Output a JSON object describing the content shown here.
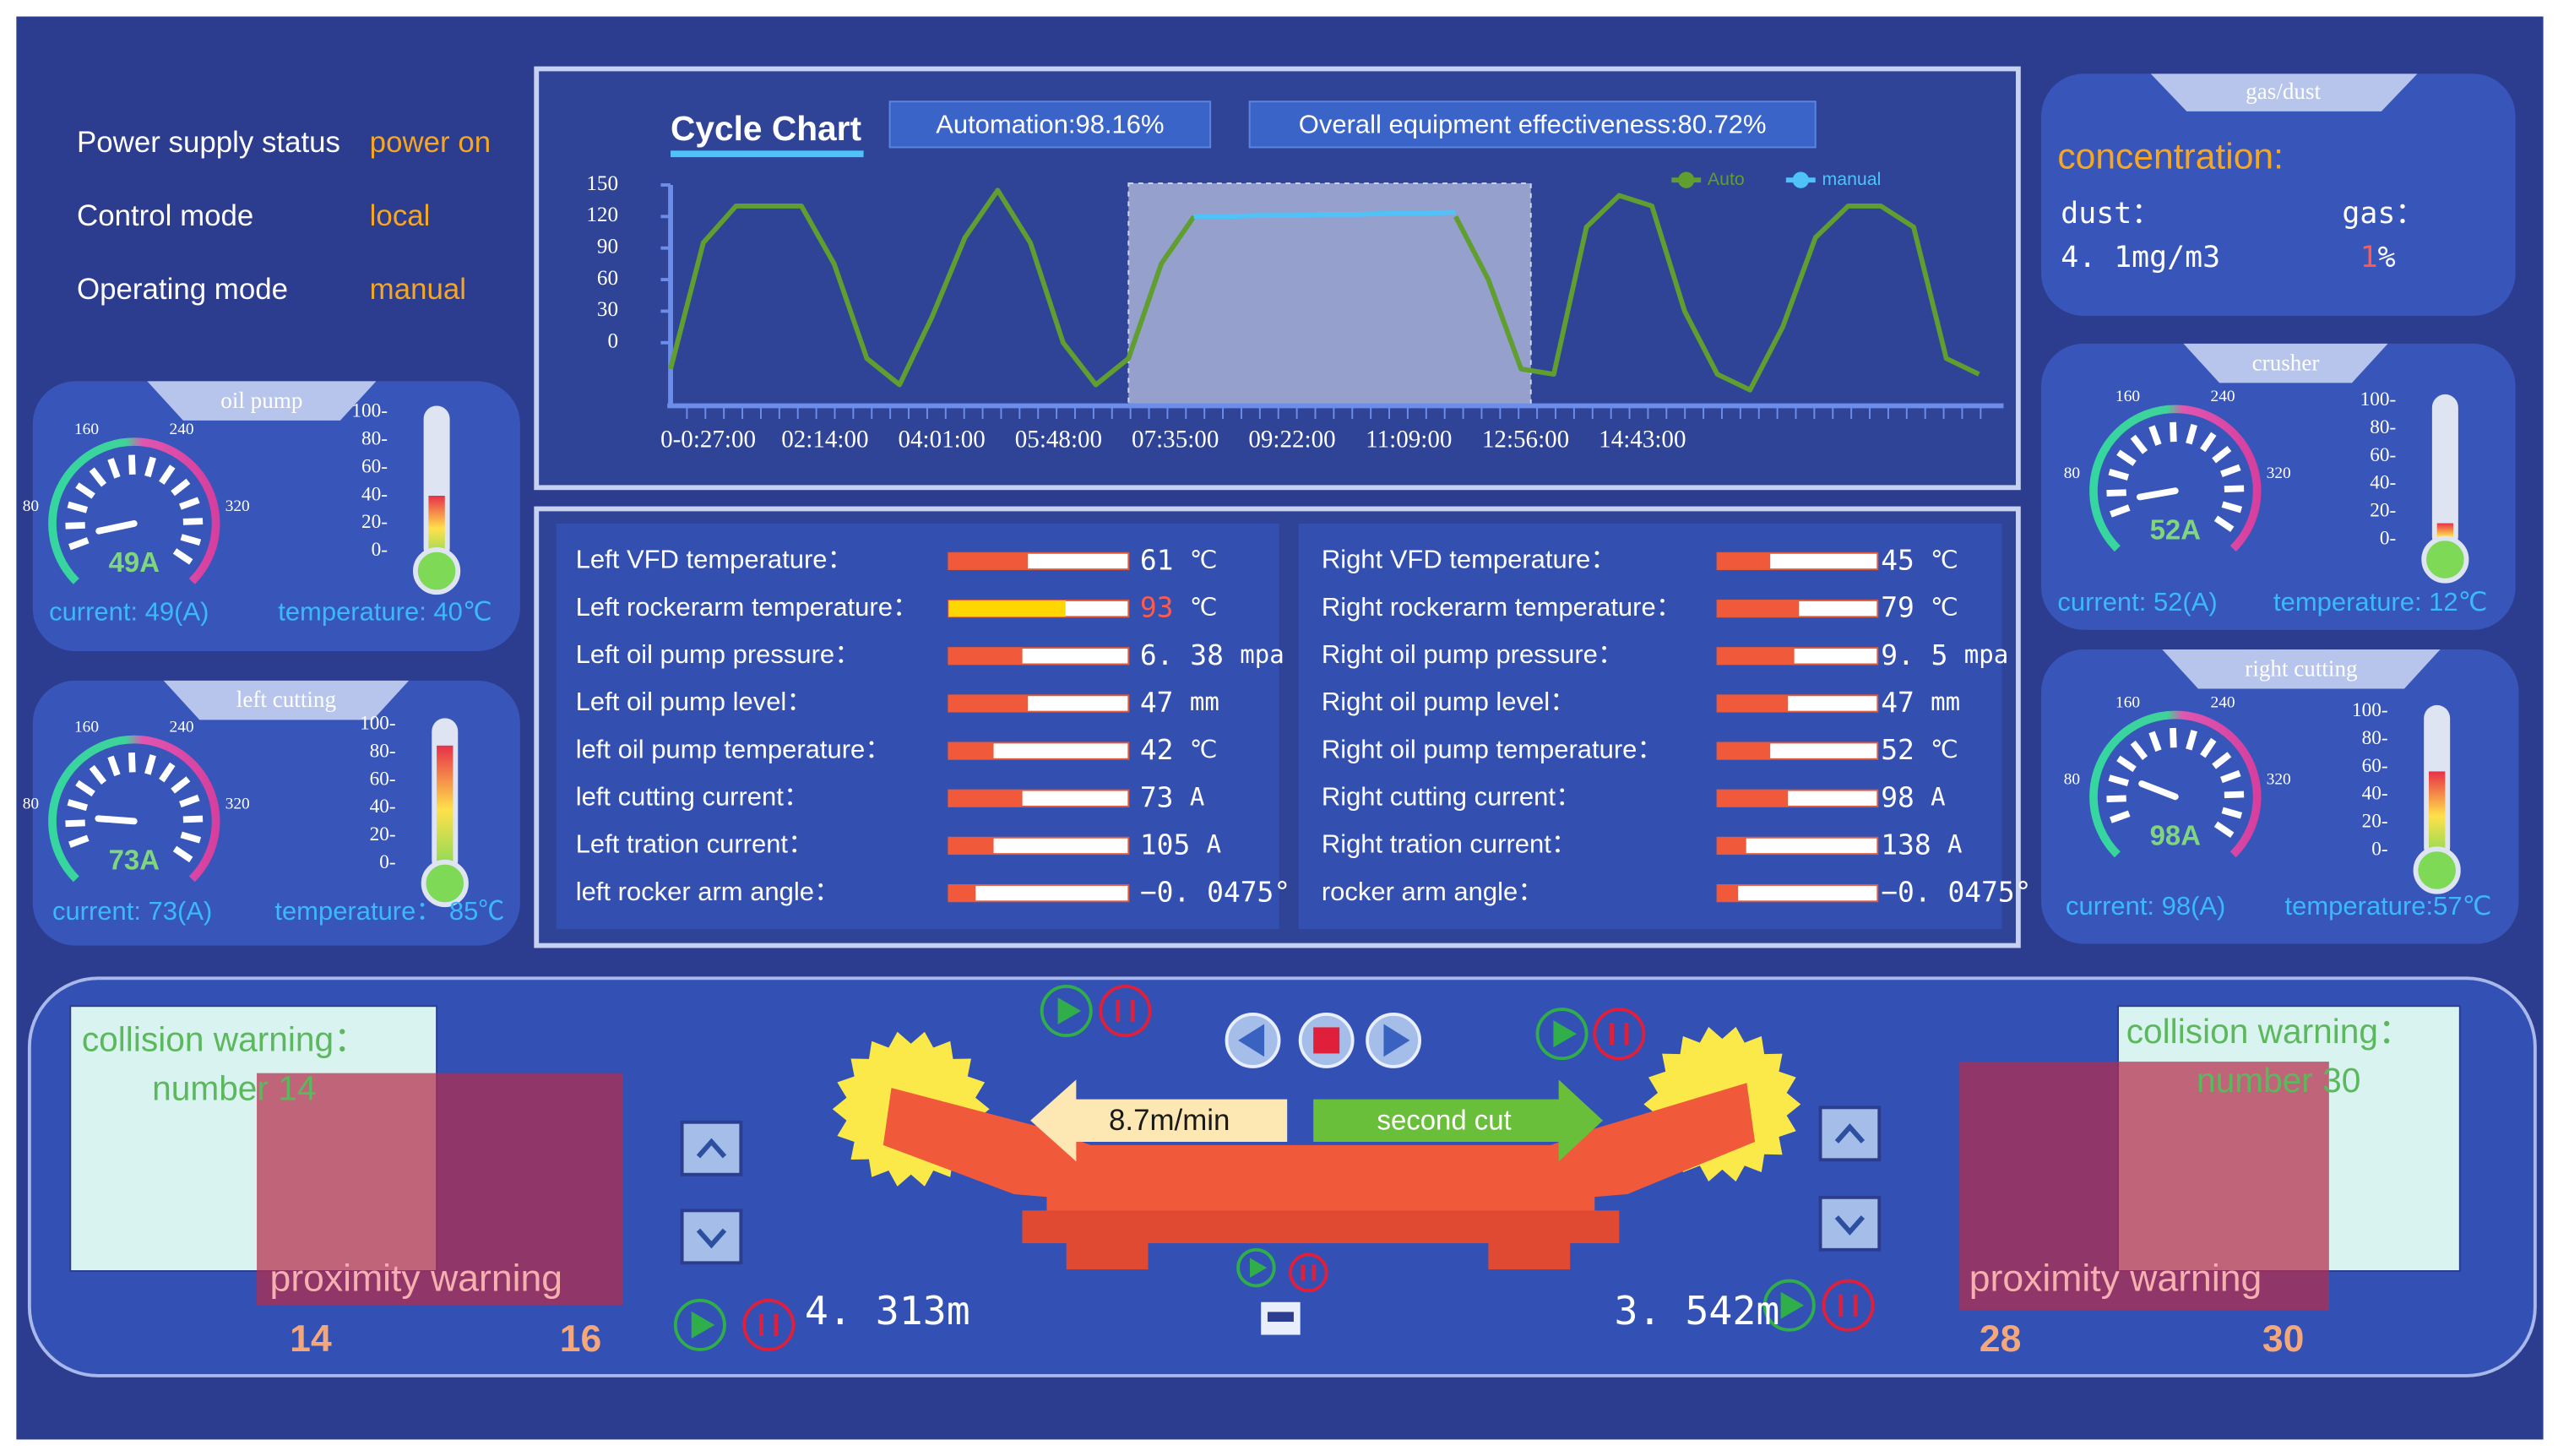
{
  "status": [
    {
      "label": "Power supply status",
      "value": "power on"
    },
    {
      "label": "Control mode",
      "value": "local"
    },
    {
      "label": "Operating mode",
      "value": "manual"
    }
  ],
  "chart_data": {
    "type": "line",
    "title": "Cycle Chart",
    "annotations": [
      "Automation:98.16%",
      "Overall equipment effectiveness:80.72%"
    ],
    "x_tick_labels": [
      "0-0:27:00",
      "02:14:00",
      "04:01:00",
      "05:48:00",
      "07:35:00",
      "09:22:00",
      "11:09:00",
      "12:56:00",
      "14:43:00"
    ],
    "ylim": [
      -60,
      150
    ],
    "yticks": [
      150,
      120,
      90,
      60,
      30,
      0
    ],
    "legend": "top-right",
    "series": [
      {
        "name": "Auto",
        "color": "#5f9e2f",
        "values": [
          -25,
          95,
          130,
          130,
          130,
          75,
          -15,
          -40,
          25,
          100,
          145,
          95,
          0,
          -40,
          -15,
          75,
          120,
          null,
          null,
          null,
          null,
          null,
          null,
          null,
          120,
          60,
          -25,
          -30,
          110,
          140,
          130,
          30,
          -30,
          -45,
          15,
          100,
          130,
          130,
          110,
          -15,
          -30
        ]
      },
      {
        "name": "manual",
        "color": "#4fc3f7",
        "values": [
          null,
          null,
          null,
          null,
          null,
          null,
          null,
          null,
          null,
          null,
          null,
          null,
          null,
          null,
          null,
          null,
          120,
          120,
          121,
          121,
          122,
          122,
          123,
          123,
          124,
          null,
          null,
          null,
          null,
          null,
          null,
          null,
          null,
          null,
          null,
          null,
          null,
          null,
          null,
          null,
          null
        ]
      }
    ]
  },
  "gauge_scale": {
    "lim": [
      0,
      400
    ],
    "ticks": [
      80,
      160,
      240,
      320
    ]
  },
  "thermo_scale": {
    "lim": [
      0,
      100
    ],
    "ticks": [
      {
        "value": 100,
        "label": "100-"
      },
      {
        "value": 80,
        "label": "80-"
      },
      {
        "value": 60,
        "label": "60-"
      },
      {
        "value": 40,
        "label": "40-"
      },
      {
        "value": 20,
        "label": "20-"
      },
      {
        "value": 0,
        "label": "0-"
      }
    ]
  },
  "gauges": [
    {
      "title": "oil pump",
      "current": 49,
      "readout": "49A",
      "current_label": "current: 49(A)",
      "temperature": 40,
      "temperature_label": "temperature: 40℃"
    },
    {
      "title": "left cutting",
      "current": 73,
      "readout": "73A",
      "current_label": "current: 73(A)",
      "temperature": 85,
      "temperature_label": "temperature： 85℃"
    },
    {
      "title": "crusher",
      "current": 52,
      "readout": "52A",
      "current_label": "current: 52(A)",
      "temperature": 12,
      "temperature_label": "temperature: 12℃"
    },
    {
      "title": "right cutting",
      "current": 98,
      "readout": "98A",
      "current_label": "current: 98(A)",
      "temperature": 57,
      "temperature_label": "temperature:57℃"
    }
  ],
  "gas_dust": {
    "title": "gas/dust",
    "heading": "concentration:",
    "dust_label": "dust：",
    "dust_value": "4. 1mg/m3",
    "gas_label": "gas：",
    "gas_value": 1,
    "gas_unit": "%"
  },
  "parameters": {
    "left": [
      {
        "label": "Left VFD temperature：",
        "value": 61,
        "unit": "℃",
        "fill": 44
      },
      {
        "label": "Left rockerarm temperature：",
        "value": 93,
        "unit": "℃",
        "fill": 65,
        "alert": true
      },
      {
        "label": "Left oil pump pressure：",
        "value": 6.38,
        "value_label": "6. 38",
        "unit": "mpa",
        "fill": 41
      },
      {
        "label": "Left oil pump level：",
        "value": 47,
        "unit": "mm",
        "fill": 44
      },
      {
        "label": "left oil pump temperature：",
        "value": 42,
        "unit": "℃",
        "fill": 25
      },
      {
        "label": "left cutting current：",
        "value": 73,
        "unit": "A",
        "fill": 41
      },
      {
        "label": "Left tration current：",
        "value": 105,
        "unit": "A",
        "fill": 25
      },
      {
        "label": "left rocker arm angle：",
        "value": -0.0475,
        "value_label": "−0. 0475°",
        "fill": 15
      }
    ],
    "right": [
      {
        "label": "Right VFD temperature：",
        "value": 45,
        "unit": "℃",
        "fill": 33
      },
      {
        "label": "Right rockerarm temperature：",
        "value": 79,
        "unit": "℃",
        "fill": 51
      },
      {
        "label": "Right oil pump pressure：",
        "value": 9.5,
        "value_label": "9. 5",
        "unit": "mpa",
        "fill": 48
      },
      {
        "label": "Right oil pump level：",
        "value": 47,
        "unit": "mm",
        "fill": 44
      },
      {
        "label": "Right oil pump temperature：",
        "value": 52,
        "unit": "℃",
        "fill": 33
      },
      {
        "label": "Right cutting current：",
        "value": 98,
        "unit": "A",
        "fill": 44
      },
      {
        "label": "Right tration current：",
        "value": 138,
        "unit": "A",
        "fill": 18
      },
      {
        "label": "rocker arm angle：",
        "value": -0.0475,
        "value_label": "−0. 0475°",
        "fill": 13
      }
    ]
  },
  "bottom": {
    "left": {
      "collision": "collision warning：",
      "number": "number 14",
      "proximity": "proximity warning",
      "range": [
        14,
        16
      ]
    },
    "right": {
      "collision": "collision warning：",
      "number": "number 30",
      "proximity": "proximity warning",
      "range": [
        28,
        30
      ]
    },
    "speed": "8.7m/min",
    "cut": "second cut",
    "left_position": "4. 313m",
    "right_position": "3. 542m"
  }
}
